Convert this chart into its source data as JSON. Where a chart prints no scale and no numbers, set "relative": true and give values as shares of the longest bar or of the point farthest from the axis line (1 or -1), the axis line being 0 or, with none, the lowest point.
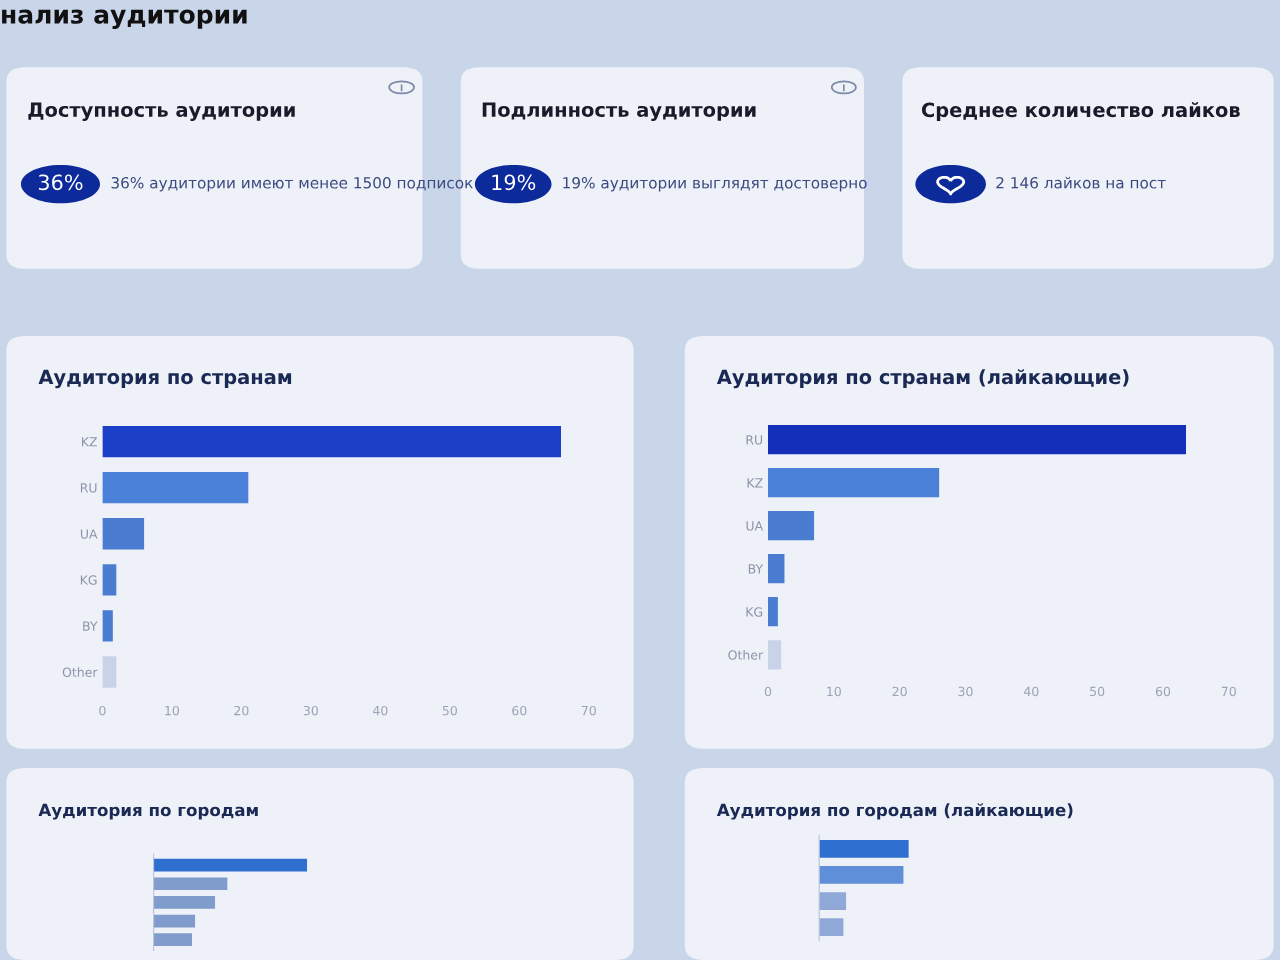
{
  "chart_data": [
    {
      "type": "other",
      "title": "нализ аудитории"
    },
    {
      "type": "other",
      "title": "Доступность аудитории",
      "annotations": [
        "36%",
        "36% аудитории имеют менее 1500 подписок"
      ]
    },
    {
      "type": "other",
      "title": "Подлинность аудитории",
      "annotations": [
        "19%",
        "19% аудитории выглядят достоверно"
      ]
    },
    {
      "type": "other",
      "title": "Среднее количество лайков",
      "annotations": [
        "2 146 лайков на пост"
      ]
    },
    {
      "type": "bar",
      "orientation": "horizontal",
      "title": "Аудитория по странам",
      "categories": [
        "KZ",
        "RU",
        "UA",
        "KG",
        "BY",
        "Other"
      ],
      "values": [
        66,
        21,
        6,
        2,
        1.5,
        2
      ],
      "colors": [
        "#1c3fc8",
        "#4a80d8",
        "#4a7cd2",
        "#4a7cd2",
        "#4a7cd2",
        "#c9d3e8"
      ],
      "xlim": [
        0,
        70
      ],
      "xticks": [
        0,
        10,
        20,
        30,
        40,
        50,
        60,
        70
      ],
      "grid": false
    },
    {
      "type": "bar",
      "orientation": "horizontal",
      "title": "Аудитория по странам (лайкающие)",
      "categories": [
        "RU",
        "KZ",
        "UA",
        "BY",
        "KG",
        "Other"
      ],
      "values": [
        63.5,
        26,
        7,
        2.5,
        1.5,
        2
      ],
      "colors": [
        "#1530b8",
        "#4a80d8",
        "#4a7cd2",
        "#4a7cd2",
        "#4a7cd2",
        "#c9d3e8"
      ],
      "xlim": [
        0,
        70
      ],
      "xticks": [
        0,
        10,
        20,
        30,
        40,
        50,
        60,
        70
      ],
      "grid": false
    },
    {
      "type": "bar",
      "orientation": "horizontal",
      "relative": true,
      "title": "Аудитория по городам",
      "categories": [
        null,
        null,
        null,
        null,
        null
      ],
      "values": [
        1,
        0.48,
        0.4,
        0.27,
        0.25
      ],
      "colors": [
        "#2f6fd0",
        "#7f9ccc",
        "#7f9ccc",
        "#7f9ccc",
        "#7f9ccc"
      ]
    },
    {
      "type": "bar",
      "orientation": "horizontal",
      "relative": true,
      "title": "Аудитория по городам (лайкающие)",
      "categories": [
        null,
        null,
        null,
        null
      ],
      "values": [
        1,
        0.94,
        0.3,
        0.27
      ],
      "colors": [
        "#2f6fd0",
        "#5f8fd8",
        "#8fa8d8",
        "#8fa8d8"
      ]
    }
  ]
}
